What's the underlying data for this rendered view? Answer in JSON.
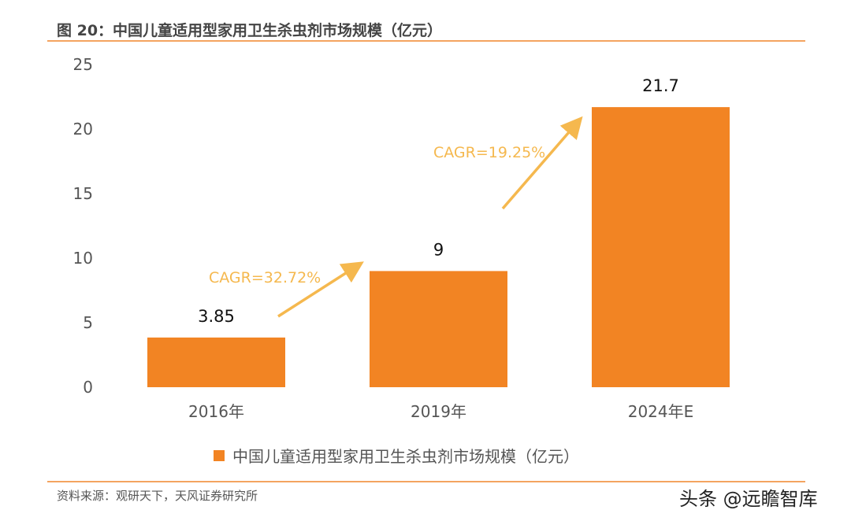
{
  "header": {
    "title": "图 20：中国儿童适用型家用卫生杀虫剂市场规模（亿元）"
  },
  "footer": {
    "source": "资料来源：观研天下，天风证券研究所",
    "watermark": "头条 @远瞻智库"
  },
  "colors": {
    "bar": "#F28423",
    "annotation": "#F5B84E",
    "rule": "#F4A460"
  },
  "chart_data": {
    "type": "bar",
    "title": "",
    "xlabel": "",
    "ylabel": "",
    "categories": [
      "2016年",
      "2019年",
      "2024年E"
    ],
    "series": [
      {
        "name": "中国儿童适用型家用卫生杀虫剂市场规模（亿元）",
        "values": [
          3.85,
          9,
          21.7
        ]
      }
    ],
    "data_labels": [
      "3.85",
      "9",
      "21.7"
    ],
    "ylim": [
      0,
      25
    ],
    "yticks": [
      "0",
      "5",
      "10",
      "15",
      "20",
      "25"
    ],
    "grid": false,
    "legend": "bottom",
    "annotations": [
      {
        "text": "CAGR=32.72%",
        "from": "2016年",
        "to": "2019年"
      },
      {
        "text": "CAGR=19.25%",
        "from": "2019年",
        "to": "2024年E"
      }
    ]
  }
}
